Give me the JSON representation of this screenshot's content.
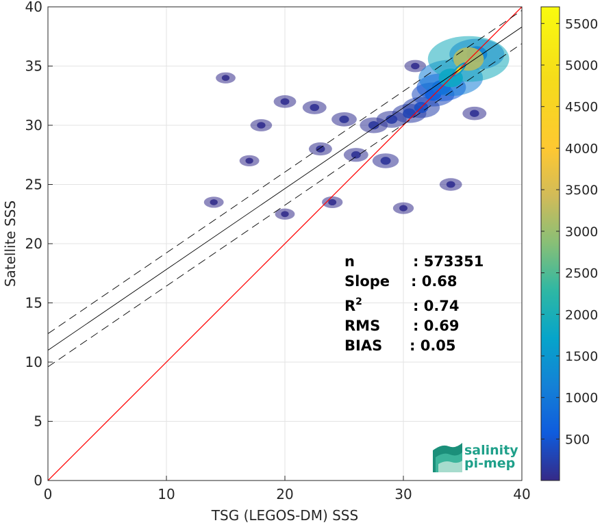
{
  "chart_data": {
    "type": "scatter",
    "subtype": "density-heatmap scatter",
    "xlabel": "TSG (LEGOS-DM) SSS",
    "ylabel": "Satellite SSS",
    "xlim": [
      0,
      40
    ],
    "ylim": [
      0,
      40
    ],
    "xticks": [
      0,
      10,
      20,
      30,
      40
    ],
    "yticks": [
      0,
      5,
      10,
      15,
      20,
      25,
      30,
      35,
      40
    ],
    "grid": true,
    "lines": [
      {
        "name": "1:1 line",
        "kind": "identity",
        "color": "#ff0000",
        "x": [
          0,
          40
        ],
        "y": [
          0,
          40
        ]
      },
      {
        "name": "fit",
        "kind": "regression",
        "color": "#000000",
        "x": [
          0,
          40
        ],
        "y": [
          11.0,
          38.3
        ]
      },
      {
        "name": "fit upper bound",
        "kind": "dashed",
        "color": "#000000",
        "x": [
          0,
          40
        ],
        "y": [
          12.4,
          39.7
        ]
      },
      {
        "name": "fit lower bound",
        "kind": "dashed",
        "color": "#000000",
        "x": [
          0,
          40
        ],
        "y": [
          9.6,
          36.9
        ]
      }
    ],
    "stats": [
      {
        "label": "n",
        "value": ": 573351"
      },
      {
        "label": "Slope",
        "value": ": 0.68"
      },
      {
        "label": "R",
        "sup": "2",
        "value": ": 0.74"
      },
      {
        "label": "RMS",
        "value": ": 0.69"
      },
      {
        "label": "BIAS",
        "value": ": 0.05"
      }
    ],
    "density": {
      "core": {
        "x": 34.7,
        "y": 34.7,
        "peak_count": 5700
      },
      "points": [
        {
          "x": 35.5,
          "y": 35.6,
          "count": 3200
        },
        {
          "x": 34.0,
          "y": 34.0,
          "count": 1800
        },
        {
          "x": 36.2,
          "y": 36.0,
          "count": 1200
        },
        {
          "x": 33.2,
          "y": 33.2,
          "count": 900
        },
        {
          "x": 32.5,
          "y": 32.6,
          "count": 600
        },
        {
          "x": 31.5,
          "y": 31.5,
          "count": 400
        },
        {
          "x": 30.5,
          "y": 31.0,
          "count": 300
        },
        {
          "x": 29.0,
          "y": 30.5,
          "count": 200
        },
        {
          "x": 27.5,
          "y": 30.0,
          "count": 150
        },
        {
          "x": 25.0,
          "y": 30.5,
          "count": 100
        },
        {
          "x": 22.5,
          "y": 31.5,
          "count": 80
        },
        {
          "x": 20.0,
          "y": 32.0,
          "count": 60
        },
        {
          "x": 18.0,
          "y": 30.0,
          "count": 50
        },
        {
          "x": 23.0,
          "y": 28.0,
          "count": 70
        },
        {
          "x": 26.0,
          "y": 27.5,
          "count": 90
        },
        {
          "x": 28.5,
          "y": 27.0,
          "count": 120
        },
        {
          "x": 15.0,
          "y": 34.0,
          "count": 30
        },
        {
          "x": 17.0,
          "y": 27.0,
          "count": 30
        },
        {
          "x": 14.0,
          "y": 23.5,
          "count": 30
        },
        {
          "x": 20.0,
          "y": 22.5,
          "count": 30
        },
        {
          "x": 24.0,
          "y": 23.5,
          "count": 40
        },
        {
          "x": 30.0,
          "y": 23.0,
          "count": 40
        },
        {
          "x": 34.0,
          "y": 25.0,
          "count": 60
        },
        {
          "x": 36.0,
          "y": 31.0,
          "count": 80
        },
        {
          "x": 31.0,
          "y": 35.0,
          "count": 50
        }
      ]
    },
    "colorbar": {
      "min": 1,
      "max": 5700,
      "ticks": [
        500,
        1000,
        1500,
        2000,
        2500,
        3000,
        3500,
        4000,
        4500,
        5000,
        5500
      ],
      "colormap": "parula"
    }
  },
  "logo": {
    "line1": "salinity",
    "line2": "pi-mep",
    "color": "#1fa08a"
  }
}
